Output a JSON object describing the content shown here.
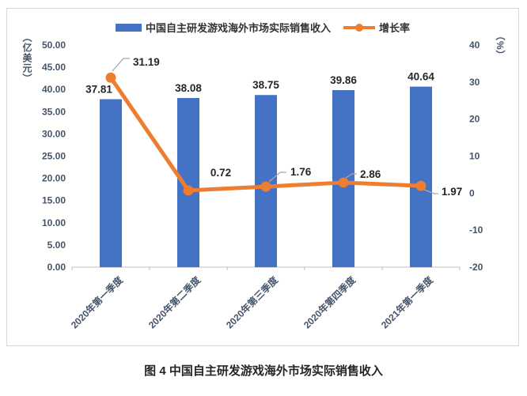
{
  "figure": {
    "caption": "图 4 中国自主研发游戏海外市场实际销售收入"
  },
  "legend": [
    {
      "label": "中国自主研发游戏海外市场实际销售收入",
      "swatch": "bar-swatch-icon",
      "color": "#4472C4"
    },
    {
      "label": "增长率",
      "swatch": "line-swatch-icon",
      "color": "#ED7D31"
    }
  ],
  "colors": {
    "bar": "#4472C4",
    "line": "#ED7D31",
    "tick_text": "#44546A",
    "data_label": "#262626",
    "axis_line": "#BFBFBF",
    "leader_line": "#A6A6A6",
    "frame_border": "#D9D9D9"
  },
  "chart_data": {
    "type": "bar",
    "subtype": "bar-line-combo",
    "categories": [
      "2020年第一季度",
      "2020年第二季度",
      "2020年第三季度",
      "2020年第四季度",
      "2021年第一季度"
    ],
    "series": [
      {
        "name": "中国自主研发游戏海外市场实际销售收入",
        "type": "bar",
        "axis": "left",
        "color": "#4472C4",
        "values": [
          37.81,
          38.08,
          38.75,
          39.86,
          40.64
        ]
      },
      {
        "name": "增长率",
        "type": "line",
        "axis": "right",
        "color": "#ED7D31",
        "values": [
          31.19,
          0.72,
          1.76,
          2.86,
          1.97
        ]
      }
    ],
    "title": "图 4 中国自主研发游戏海外市场实际销售收入",
    "xlabel": "",
    "left_axis": {
      "title": "（亿美元）",
      "min": 0,
      "max": 50,
      "step": 5,
      "tick_decimals": 2
    },
    "right_axis": {
      "title": "（%）",
      "min": -20,
      "max": 40,
      "step": 10,
      "tick_decimals": 0
    },
    "grid": false,
    "legend_position": "top-center",
    "data_labels": true
  }
}
